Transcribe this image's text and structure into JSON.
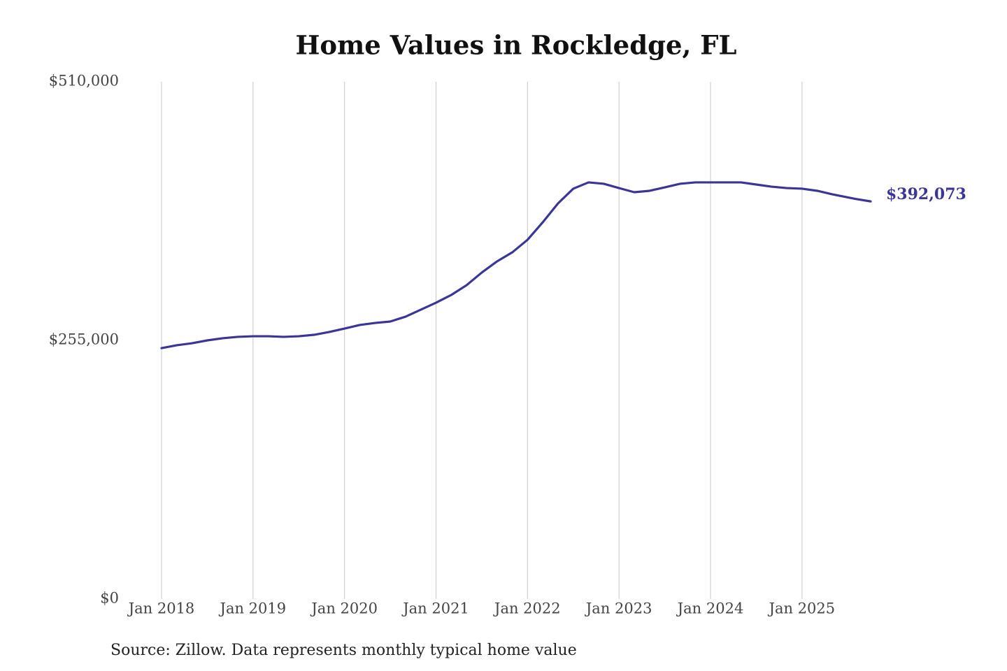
{
  "chart_data": {
    "type": "line",
    "title": "Home Values in Rockledge, FL",
    "caption": "Source: Zillow. Data represents monthly typical home value",
    "x": [
      "2018-01",
      "2018-03",
      "2018-05",
      "2018-07",
      "2018-09",
      "2018-11",
      "2019-01",
      "2019-03",
      "2019-05",
      "2019-07",
      "2019-09",
      "2019-11",
      "2020-01",
      "2020-03",
      "2020-05",
      "2020-07",
      "2020-09",
      "2020-11",
      "2021-01",
      "2021-03",
      "2021-05",
      "2021-07",
      "2021-09",
      "2021-11",
      "2022-01",
      "2022-03",
      "2022-05",
      "2022-07",
      "2022-09",
      "2022-11",
      "2023-01",
      "2023-03",
      "2023-05",
      "2023-07",
      "2023-09",
      "2023-11",
      "2024-01",
      "2024-03",
      "2024-05",
      "2024-07",
      "2024-09",
      "2024-11",
      "2025-01",
      "2025-03",
      "2025-05",
      "2025-08",
      "2025-10"
    ],
    "series": [
      {
        "name": "Home value",
        "color": "#3a3596",
        "values": [
          247400,
          250200,
          252200,
          255000,
          257100,
          258500,
          259100,
          259100,
          258500,
          259100,
          260500,
          263300,
          266700,
          270200,
          272200,
          273600,
          278400,
          285300,
          292200,
          299800,
          309400,
          321900,
          332900,
          341800,
          354200,
          371500,
          390100,
          404600,
          410800,
          409400,
          405200,
          401100,
          402500,
          405900,
          409400,
          410800,
          410800,
          410800,
          410800,
          408700,
          406600,
          405200,
          404600,
          402500,
          399000,
          394500,
          392073
        ],
        "value_labels": [
          null,
          null,
          null,
          null,
          null,
          null,
          null,
          null,
          null,
          null,
          null,
          null,
          null,
          null,
          null,
          null,
          null,
          null,
          null,
          null,
          null,
          null,
          null,
          null,
          null,
          null,
          null,
          null,
          null,
          null,
          null,
          null,
          null,
          null,
          null,
          null,
          null,
          null,
          null,
          null,
          null,
          null,
          null,
          null,
          null,
          null,
          "$392,073"
        ]
      }
    ],
    "xlim": [
      "2018-01",
      "2025-10"
    ],
    "xticks": [
      {
        "value": "2018-01",
        "label": "Jan 2018"
      },
      {
        "value": "2019-01",
        "label": "Jan 2019"
      },
      {
        "value": "2020-01",
        "label": "Jan 2020"
      },
      {
        "value": "2021-01",
        "label": "Jan 2021"
      },
      {
        "value": "2022-01",
        "label": "Jan 2022"
      },
      {
        "value": "2023-01",
        "label": "Jan 2023"
      },
      {
        "value": "2024-01",
        "label": "Jan 2024"
      },
      {
        "value": "2025-01",
        "label": "Jan 2025"
      }
    ],
    "ylim": [
      0,
      510000
    ],
    "yticks": [
      {
        "value": 0,
        "label": "$0"
      },
      {
        "value": 255000,
        "label": "$255,000"
      },
      {
        "value": 510000,
        "label": "$510,000"
      }
    ],
    "grid": true
  }
}
